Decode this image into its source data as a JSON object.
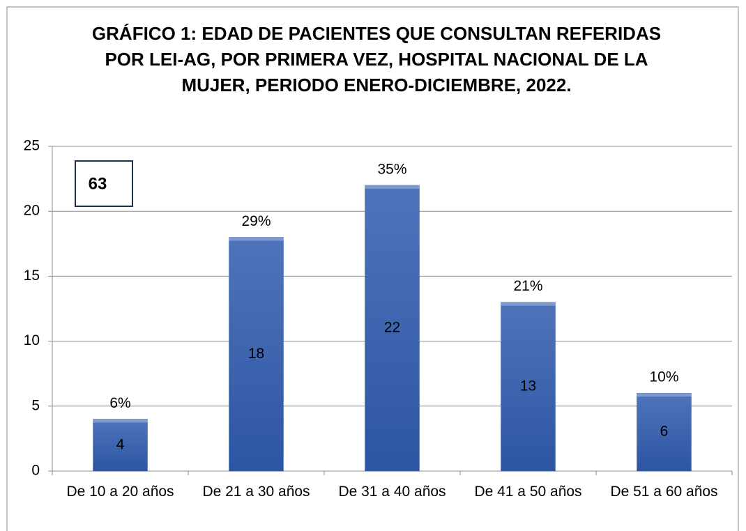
{
  "chart_data": {
    "type": "bar",
    "title": "GRÁFICO 1: EDAD DE PACIENTES QUE CONSULTAN REFERIDAS POR LEI-AG, POR PRIMERA VEZ, HOSPITAL NACIONAL DE LA MUJER, PERIODO ENERO-DICIEMBRE, 2022.",
    "categories": [
      "De 10 a 20 años",
      "De 21 a 30 años",
      "De 31 a 40 años",
      "De 41 a 50 años",
      "De 51 a 60 años"
    ],
    "values": [
      4,
      18,
      22,
      13,
      6
    ],
    "percentages": [
      6,
      29,
      35,
      21,
      10
    ],
    "percentage_labels": [
      "6%",
      "29%",
      "35%",
      "21%",
      "10%"
    ],
    "annotation": 63,
    "color": "#3a62ae",
    "ylim": [
      0,
      25
    ],
    "yticks": [
      0,
      5,
      10,
      15,
      20,
      25
    ],
    "grid": true
  }
}
